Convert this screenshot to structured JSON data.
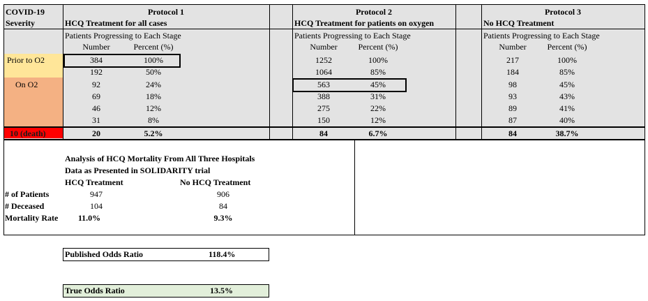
{
  "header": {
    "severity_line1": "COVID-19",
    "severity_line2": "Severity",
    "protocols": [
      {
        "title": "Protocol 1",
        "subtitle": "HCQ Treatment for all cases"
      },
      {
        "title": "Protocol 2",
        "subtitle": "HCQ Treatment for patients on oxygen"
      },
      {
        "title": "Protocol 3",
        "subtitle": "No HCQ Treatment"
      }
    ],
    "progress_label": "Patients Progressing to Each Stage",
    "col_number": "Number",
    "col_percent": "Percent (%)"
  },
  "stages": {
    "prior": "Prior to O2",
    "on": "On O2",
    "death": "10 (death)"
  },
  "rows": [
    {
      "p1n": "384",
      "p1p": "100%",
      "p2n": "1252",
      "p2p": "100%",
      "p3n": "217",
      "p3p": "100%"
    },
    {
      "p1n": "192",
      "p1p": "50%",
      "p2n": "1064",
      "p2p": "85%",
      "p3n": "184",
      "p3p": "85%"
    },
    {
      "p1n": "92",
      "p1p": "24%",
      "p2n": "563",
      "p2p": "45%",
      "p3n": "98",
      "p3p": "45%"
    },
    {
      "p1n": "69",
      "p1p": "18%",
      "p2n": "388",
      "p2p": "31%",
      "p3n": "93",
      "p3p": "43%"
    },
    {
      "p1n": "46",
      "p1p": "12%",
      "p2n": "275",
      "p2p": "22%",
      "p3n": "89",
      "p3p": "41%"
    },
    {
      "p1n": "31",
      "p1p": "8%",
      "p2n": "150",
      "p2p": "12%",
      "p3n": "87",
      "p3p": "40%"
    }
  ],
  "death_row": {
    "p1n": "20",
    "p1p": "5.2%",
    "p2n": "84",
    "p2p": "6.7%",
    "p3n": "84",
    "p3p": "38.7%"
  },
  "analysis": {
    "title1": "Analysis of HCQ Mortality From All Three Hospitals",
    "title2": "Data as Presented in SOLIDARITY trial",
    "col_hcq": "HCQ Treatment",
    "col_no_hcq": "No HCQ Treatment",
    "rows": [
      {
        "label": "# of Patients",
        "hcq": "947",
        "no_hcq": "906"
      },
      {
        "label": "# Deceased",
        "hcq": "104",
        "no_hcq": "84"
      },
      {
        "label": "Mortality Rate",
        "hcq": "11.0%",
        "no_hcq": "9.3%"
      }
    ]
  },
  "published": {
    "label": "Published Odds Ratio",
    "value": "118.4%"
  },
  "true_ratio": {
    "label": "True Odds Ratio",
    "value": "13.5%"
  },
  "colors": {
    "prior": "#ffe699",
    "on": "#f4b183",
    "death": "#ff0000",
    "true_box": "#e2efda",
    "grid": "#e3e3e3"
  }
}
